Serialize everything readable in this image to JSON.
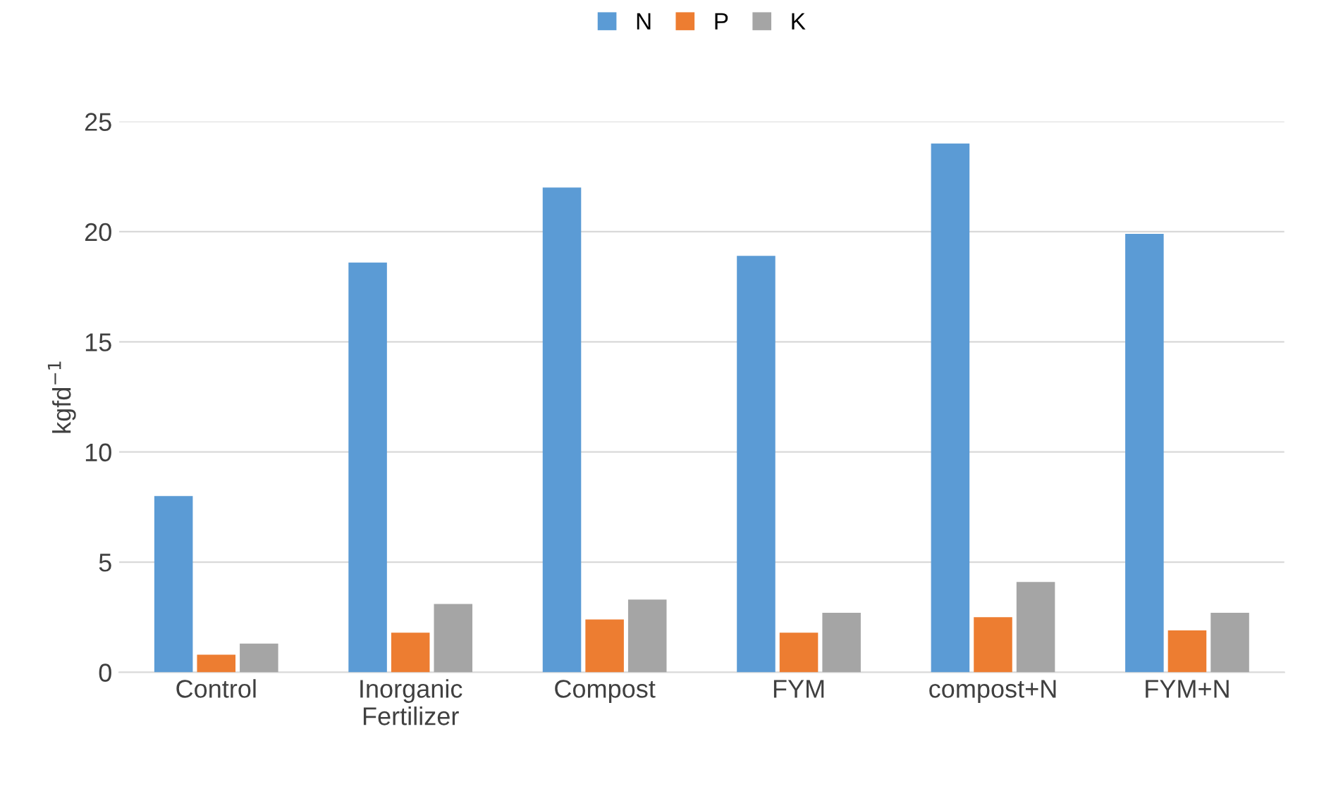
{
  "chart_data": {
    "type": "bar",
    "ylabel": "kgfd$^{−1}$",
    "categories": [
      "Control",
      "Inorganic\nFertilizer",
      "Compost",
      "FYM",
      "compost+N",
      "FYM+N"
    ],
    "series": [
      {
        "name": "N",
        "color": "#5b9bd5",
        "values": [
          8.0,
          18.6,
          22.0,
          18.9,
          24.0,
          19.9
        ]
      },
      {
        "name": "P",
        "color": "#ed7d31",
        "values": [
          0.8,
          1.8,
          2.4,
          1.8,
          2.5,
          1.9
        ]
      },
      {
        "name": "K",
        "color": "#a5a5a5",
        "values": [
          1.3,
          3.1,
          3.3,
          2.7,
          4.1,
          2.7
        ]
      }
    ],
    "ylim": [
      0,
      25
    ],
    "yticks": [
      0,
      5,
      10,
      15,
      20,
      25
    ],
    "grid": "y",
    "legend": "top"
  }
}
